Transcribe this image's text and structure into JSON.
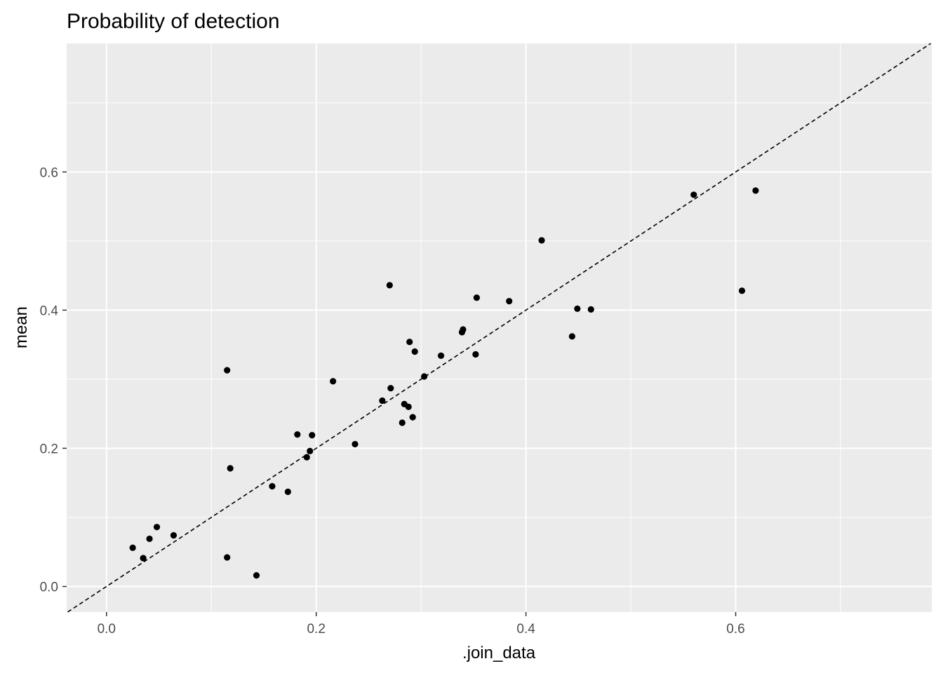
{
  "chart_data": {
    "type": "scatter",
    "title": "Probability of detection",
    "xlabel": ".join_data",
    "ylabel": "mean",
    "xlim": [
      -0.038,
      0.787
    ],
    "ylim": [
      -0.037,
      0.786
    ],
    "x_ticks": [
      0.0,
      0.2,
      0.4,
      0.6
    ],
    "x_tick_labels": [
      "0.0",
      "0.2",
      "0.4",
      "0.6"
    ],
    "y_ticks": [
      0.0,
      0.2,
      0.4,
      0.6
    ],
    "y_tick_labels": [
      "0.0",
      "0.2",
      "0.4",
      "0.6"
    ],
    "grid": true,
    "reference_line": {
      "slope": 1,
      "intercept": 0,
      "style": "dashed"
    },
    "colors": {
      "panel": "#ebebeb",
      "grid": "#ffffff",
      "point": "#000000",
      "line": "#000000"
    },
    "points": [
      {
        "x": 0.025,
        "y": 0.056
      },
      {
        "x": 0.035,
        "y": 0.041
      },
      {
        "x": 0.041,
        "y": 0.069
      },
      {
        "x": 0.048,
        "y": 0.086
      },
      {
        "x": 0.064,
        "y": 0.074
      },
      {
        "x": 0.115,
        "y": 0.313
      },
      {
        "x": 0.115,
        "y": 0.042
      },
      {
        "x": 0.118,
        "y": 0.171
      },
      {
        "x": 0.143,
        "y": 0.016
      },
      {
        "x": 0.158,
        "y": 0.145
      },
      {
        "x": 0.173,
        "y": 0.137
      },
      {
        "x": 0.182,
        "y": 0.22
      },
      {
        "x": 0.191,
        "y": 0.187
      },
      {
        "x": 0.194,
        "y": 0.196
      },
      {
        "x": 0.196,
        "y": 0.219
      },
      {
        "x": 0.216,
        "y": 0.297
      },
      {
        "x": 0.237,
        "y": 0.206
      },
      {
        "x": 0.263,
        "y": 0.269
      },
      {
        "x": 0.27,
        "y": 0.436
      },
      {
        "x": 0.271,
        "y": 0.287
      },
      {
        "x": 0.282,
        "y": 0.237
      },
      {
        "x": 0.284,
        "y": 0.264
      },
      {
        "x": 0.288,
        "y": 0.26
      },
      {
        "x": 0.289,
        "y": 0.354
      },
      {
        "x": 0.292,
        "y": 0.245
      },
      {
        "x": 0.294,
        "y": 0.34
      },
      {
        "x": 0.303,
        "y": 0.304
      },
      {
        "x": 0.319,
        "y": 0.334
      },
      {
        "x": 0.339,
        "y": 0.368
      },
      {
        "x": 0.34,
        "y": 0.372
      },
      {
        "x": 0.352,
        "y": 0.336
      },
      {
        "x": 0.353,
        "y": 0.418
      },
      {
        "x": 0.384,
        "y": 0.413
      },
      {
        "x": 0.415,
        "y": 0.501
      },
      {
        "x": 0.444,
        "y": 0.362
      },
      {
        "x": 0.449,
        "y": 0.402
      },
      {
        "x": 0.462,
        "y": 0.401
      },
      {
        "x": 0.56,
        "y": 0.567
      },
      {
        "x": 0.606,
        "y": 0.428
      },
      {
        "x": 0.619,
        "y": 0.573
      }
    ]
  }
}
